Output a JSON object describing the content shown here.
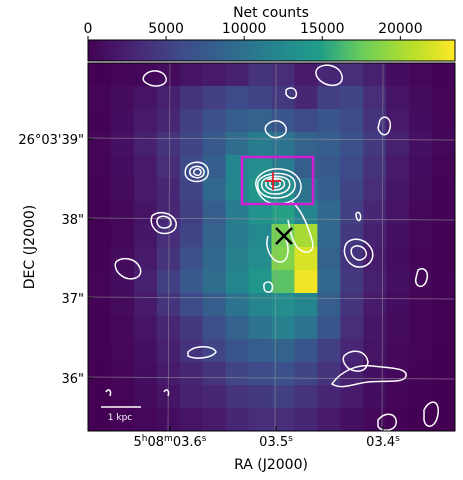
{
  "chart_data": {
    "type": "heatmap",
    "colorbar": {
      "title": "Net counts",
      "ticks": [
        "0",
        "5000",
        "10000",
        "15000",
        "20000"
      ],
      "tick_values": [
        0,
        5000,
        10000,
        15000,
        20000
      ],
      "vmin": 0,
      "vmax": 23500,
      "colormap": "viridis"
    },
    "xlabel": "RA (J2000)",
    "ylabel": "DEC (J2000)",
    "x_ticks": [
      {
        "prefix": "5",
        "sup1": "h",
        "mid": "08",
        "sup2": "m",
        "main": "03.6",
        "sup3": "s",
        "value": 3.6
      },
      {
        "prefix": "",
        "sup1": "",
        "mid": "",
        "sup2": "",
        "main": "03.5",
        "sup3": "s",
        "value": 3.5
      },
      {
        "prefix": "",
        "sup1": "",
        "mid": "",
        "sup2": "",
        "main": "03.4",
        "sup3": "s",
        "value": 3.4
      }
    ],
    "y_ticks": [
      {
        "text": "26°03'39\"",
        "value": 39
      },
      {
        "text": "38\"",
        "value": 38
      },
      {
        "text": "37\"",
        "value": 37
      },
      {
        "text": "36\"",
        "value": 36
      }
    ],
    "scale_bar": "1 kpc",
    "grid": true,
    "pixel_values": [
      [
        0,
        400,
        500,
        800,
        1500,
        2000,
        2500,
        4000,
        3500,
        2000,
        3000,
        3500,
        2500,
        1000,
        500,
        200
      ],
      [
        300,
        800,
        1500,
        2500,
        4000,
        5000,
        6000,
        5500,
        4500,
        3000,
        5000,
        5500,
        3500,
        1500,
        800,
        300
      ],
      [
        200,
        1000,
        2000,
        3000,
        5000,
        6500,
        8000,
        8500,
        7000,
        6000,
        7000,
        6000,
        4000,
        2000,
        1000,
        400
      ],
      [
        400,
        1200,
        2500,
        4000,
        5500,
        7500,
        9500,
        11000,
        10000,
        8500,
        8000,
        6500,
        4500,
        2500,
        1200,
        500
      ],
      [
        300,
        1000,
        2000,
        3500,
        6000,
        8000,
        12000,
        13000,
        11000,
        8000,
        7500,
        6000,
        4000,
        2000,
        1000,
        300
      ],
      [
        200,
        800,
        2000,
        3000,
        5500,
        9000,
        12000,
        14000,
        13000,
        10000,
        8000,
        5500,
        3500,
        1800,
        800,
        200
      ],
      [
        100,
        600,
        1500,
        3000,
        5000,
        8000,
        11000,
        13500,
        15000,
        12000,
        9000,
        5000,
        3000,
        1500,
        600,
        200
      ],
      [
        100,
        500,
        1800,
        3500,
        5500,
        8500,
        11000,
        12500,
        18000,
        20000,
        9000,
        4500,
        2500,
        1200,
        500,
        100
      ],
      [
        200,
        800,
        2000,
        4000,
        6500,
        9000,
        11500,
        13000,
        18500,
        22000,
        8500,
        4000,
        2200,
        1000,
        400,
        100
      ],
      [
        300,
        1000,
        2500,
        5000,
        7500,
        9500,
        12000,
        14000,
        17000,
        23000,
        9000,
        4500,
        2500,
        1200,
        500,
        200
      ],
      [
        200,
        800,
        2000,
        4000,
        6000,
        8000,
        10000,
        12000,
        13000,
        12000,
        8000,
        4000,
        2000,
        1000,
        400,
        100
      ],
      [
        100,
        600,
        1500,
        3000,
        4500,
        6500,
        8500,
        10000,
        11500,
        10000,
        7000,
        3500,
        1800,
        800,
        300,
        100
      ],
      [
        100,
        500,
        1200,
        2500,
        4000,
        5500,
        7000,
        8000,
        8500,
        7000,
        5000,
        3000,
        1500,
        700,
        300,
        0
      ],
      [
        0,
        400,
        1000,
        2000,
        3000,
        4000,
        5500,
        6000,
        6500,
        5500,
        4000,
        2500,
        1200,
        600,
        200,
        0
      ],
      [
        0,
        300,
        800,
        1500,
        2500,
        3000,
        4000,
        4500,
        5000,
        4000,
        3000,
        2000,
        1000,
        400,
        100,
        0
      ],
      [
        0,
        200,
        500,
        1000,
        1500,
        2000,
        3000,
        3500,
        3500,
        3000,
        2000,
        1200,
        600,
        200,
        0,
        0
      ]
    ]
  }
}
